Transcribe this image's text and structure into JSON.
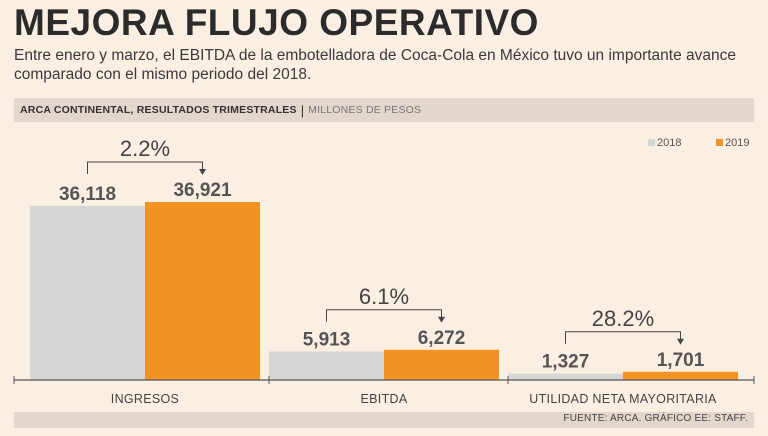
{
  "header": {
    "title": "MEJORA FLUJO OPERATIVO",
    "subtitle": "Entre enero y marzo, el EBITDA de la embotelladora de Coca-Cola en México tuvo un importante avance comparado con el mismo periodo del 2018.",
    "band_title": "ARCA CONTINENTAL, RESULTADOS TRIMESTRALES",
    "band_separator": "|",
    "band_unit": "MILLONES DE PESOS"
  },
  "footer": {
    "source": "FUENTE: ARCA. GRÁFICO EE: STAFF."
  },
  "colors": {
    "background": "#fbeee2",
    "series_2018": "#d6d6d6",
    "series_2019": "#f39324",
    "text": "#3a3a3a",
    "label": "#555555"
  },
  "chart_data": {
    "type": "bar",
    "categories": [
      "INGRESOS",
      "EBITDA",
      "UTILIDAD NETA MAYORITARIA"
    ],
    "series": [
      {
        "name": "2018",
        "values": [
          36118,
          5913,
          1327
        ],
        "labels": [
          "36,118",
          "5,913",
          "1,327"
        ]
      },
      {
        "name": "2019",
        "values": [
          36921,
          6272,
          1701
        ],
        "labels": [
          "36,921",
          "6,272",
          "1,701"
        ]
      }
    ],
    "growth_labels": [
      "2.2%",
      "6.1%",
      "28.2%"
    ],
    "legend_position": "top-right",
    "grid": false
  }
}
